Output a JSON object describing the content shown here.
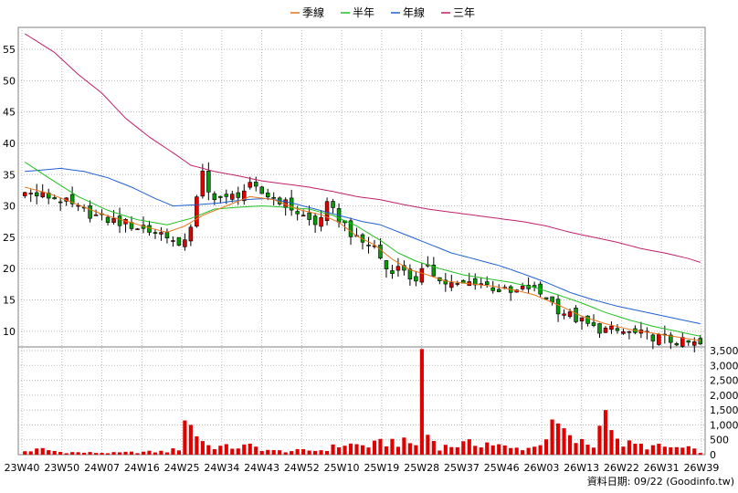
{
  "chart_data": {
    "type": "candlestick",
    "legend": [
      {
        "name": "季線",
        "color": "#e8741c"
      },
      {
        "name": "半年",
        "color": "#22c022"
      },
      {
        "name": "年線",
        "color": "#2060d0"
      },
      {
        "name": "三年",
        "color": "#c0206a"
      }
    ],
    "legend_position": "top-center",
    "grid": true,
    "price_axis": {
      "ticks": [
        10,
        15,
        20,
        25,
        30,
        35,
        40,
        45,
        50,
        55
      ],
      "range": [
        7.5,
        58.5
      ]
    },
    "volume_axis": {
      "ticks": [
        "0",
        "500",
        "1,000",
        "1,500",
        "2,000",
        "2,500",
        "3,000",
        "3,500"
      ],
      "range": [
        0,
        3500
      ]
    },
    "x_ticks": [
      "23W40",
      "23W50",
      "24W07",
      "24W16",
      "24W25",
      "24W34",
      "24W43",
      "24W52",
      "25W10",
      "25W19",
      "25W28",
      "25W37",
      "25W46",
      "26W03",
      "26W13",
      "26W22",
      "26W31",
      "26W39"
    ],
    "source_label": "資料日期: 09/22 (Goodinfo.tw)",
    "price_key_points": [
      [
        0,
        32
      ],
      [
        4,
        31.5
      ],
      [
        6,
        31
      ],
      [
        9,
        29.5
      ],
      [
        13,
        28
      ],
      [
        17,
        27.2
      ],
      [
        21,
        26
      ],
      [
        24,
        25.5
      ],
      [
        26,
        23
      ],
      [
        28,
        27
      ],
      [
        30,
        35
      ],
      [
        31,
        32
      ],
      [
        34,
        31
      ],
      [
        38,
        33
      ],
      [
        40,
        32
      ],
      [
        43,
        31
      ],
      [
        46,
        29
      ],
      [
        49,
        27
      ],
      [
        51,
        30
      ],
      [
        54,
        27
      ],
      [
        56,
        24.5
      ],
      [
        59,
        23.5
      ],
      [
        61,
        20
      ],
      [
        64,
        20
      ],
      [
        66,
        17.5
      ],
      [
        68,
        21
      ],
      [
        70,
        18
      ],
      [
        73,
        17.2
      ],
      [
        76,
        18
      ],
      [
        79,
        17
      ],
      [
        82,
        16
      ],
      [
        85,
        17
      ],
      [
        88,
        15.5
      ],
      [
        90,
        13.5
      ],
      [
        93,
        12
      ],
      [
        96,
        10.5
      ],
      [
        100,
        10
      ],
      [
        103,
        9.6
      ],
      [
        106,
        9.2
      ],
      [
        109,
        8.5
      ],
      [
        112,
        8.1
      ],
      [
        114,
        7.8
      ]
    ],
    "ma_quarter": [
      [
        0,
        33
      ],
      [
        4,
        32
      ],
      [
        9,
        30.2
      ],
      [
        13,
        28.7
      ],
      [
        17,
        27.6
      ],
      [
        21,
        26.5
      ],
      [
        24,
        25.8
      ],
      [
        27,
        26.8
      ],
      [
        30,
        28.5
      ],
      [
        34,
        30
      ],
      [
        38,
        31.5
      ],
      [
        42,
        31
      ],
      [
        46,
        29.5
      ],
      [
        50,
        28.6
      ],
      [
        53,
        27.4
      ],
      [
        56,
        25.2
      ],
      [
        59,
        23.8
      ],
      [
        62,
        21.5
      ],
      [
        65,
        19.8
      ],
      [
        68,
        19
      ],
      [
        71,
        18
      ],
      [
        75,
        17.6
      ],
      [
        79,
        17.2
      ],
      [
        83,
        16.5
      ],
      [
        86,
        15.8
      ],
      [
        90,
        14.2
      ],
      [
        94,
        12.4
      ],
      [
        98,
        11.2
      ],
      [
        102,
        10.3
      ],
      [
        106,
        9.7
      ],
      [
        110,
        9.1
      ],
      [
        114,
        8.5
      ]
    ],
    "ma_half": [
      [
        0,
        37
      ],
      [
        4,
        34.5
      ],
      [
        9,
        31.5
      ],
      [
        14,
        29.3
      ],
      [
        19,
        27.8
      ],
      [
        24,
        27
      ],
      [
        28,
        28
      ],
      [
        32,
        29.5
      ],
      [
        36,
        29.8
      ],
      [
        40,
        30
      ],
      [
        44,
        29.8
      ],
      [
        48,
        29.5
      ],
      [
        52,
        28.5
      ],
      [
        56,
        26.8
      ],
      [
        60,
        24.5
      ],
      [
        63,
        22.5
      ],
      [
        66,
        21.2
      ],
      [
        70,
        20
      ],
      [
        74,
        19
      ],
      [
        78,
        18.4
      ],
      [
        82,
        17.8
      ],
      [
        86,
        17
      ],
      [
        90,
        15.8
      ],
      [
        94,
        14.5
      ],
      [
        98,
        13
      ],
      [
        102,
        11.8
      ],
      [
        106,
        10.8
      ],
      [
        110,
        10
      ],
      [
        114,
        9.2
      ]
    ],
    "ma_year": [
      [
        0,
        35.5
      ],
      [
        6,
        36
      ],
      [
        10,
        35.5
      ],
      [
        14,
        34.5
      ],
      [
        18,
        33
      ],
      [
        22,
        31.2
      ],
      [
        25,
        30
      ],
      [
        29,
        30.2
      ],
      [
        33,
        30.5
      ],
      [
        37,
        31
      ],
      [
        41,
        31.2
      ],
      [
        45,
        30.5
      ],
      [
        49,
        29.5
      ],
      [
        53,
        28.5
      ],
      [
        57,
        27.5
      ],
      [
        60,
        27
      ],
      [
        64,
        25.5
      ],
      [
        68,
        24
      ],
      [
        72,
        22.5
      ],
      [
        76,
        21.5
      ],
      [
        80,
        20.5
      ],
      [
        84,
        19.2
      ],
      [
        88,
        17.8
      ],
      [
        92,
        16.2
      ],
      [
        96,
        15
      ],
      [
        100,
        14
      ],
      [
        104,
        13.2
      ],
      [
        108,
        12.4
      ],
      [
        112,
        11.6
      ],
      [
        114,
        11.2
      ]
    ],
    "ma_three_year": [
      [
        0,
        57.5
      ],
      [
        5,
        54.5
      ],
      [
        9,
        51
      ],
      [
        13,
        48
      ],
      [
        17,
        44
      ],
      [
        21,
        41
      ],
      [
        25,
        38.5
      ],
      [
        28,
        36.5
      ],
      [
        32,
        35.5
      ],
      [
        36,
        34.8
      ],
      [
        40,
        34
      ],
      [
        44,
        33.5
      ],
      [
        48,
        33
      ],
      [
        52,
        32.3
      ],
      [
        56,
        31.5
      ],
      [
        60,
        31
      ],
      [
        64,
        30.2
      ],
      [
        68,
        29.5
      ],
      [
        72,
        29
      ],
      [
        76,
        28.5
      ],
      [
        80,
        28
      ],
      [
        84,
        27.5
      ],
      [
        88,
        26.8
      ],
      [
        92,
        25.8
      ],
      [
        96,
        25
      ],
      [
        100,
        24.2
      ],
      [
        104,
        23.2
      ],
      [
        108,
        22.5
      ],
      [
        112,
        21.6
      ],
      [
        114,
        21
      ]
    ],
    "volume_baseline": [
      [
        0,
        120
      ],
      [
        3,
        180
      ],
      [
        6,
        90
      ],
      [
        10,
        70
      ],
      [
        15,
        60
      ],
      [
        20,
        90
      ],
      [
        24,
        110
      ],
      [
        26,
        200
      ],
      [
        27,
        1150
      ],
      [
        28,
        1000
      ],
      [
        29,
        700
      ],
      [
        30,
        500
      ],
      [
        31,
        300
      ],
      [
        34,
        250
      ],
      [
        38,
        280
      ],
      [
        42,
        120
      ],
      [
        46,
        130
      ],
      [
        50,
        150
      ],
      [
        54,
        350
      ],
      [
        58,
        300
      ],
      [
        62,
        450
      ],
      [
        66,
        350
      ],
      [
        67,
        3550
      ],
      [
        68,
        700
      ],
      [
        70,
        250
      ],
      [
        74,
        350
      ],
      [
        78,
        400
      ],
      [
        82,
        200
      ],
      [
        86,
        250
      ],
      [
        88,
        650
      ],
      [
        90,
        1050
      ],
      [
        92,
        500
      ],
      [
        96,
        300
      ],
      [
        98,
        1500
      ],
      [
        100,
        400
      ],
      [
        104,
        300
      ],
      [
        108,
        250
      ],
      [
        112,
        200
      ],
      [
        114,
        100
      ]
    ]
  }
}
